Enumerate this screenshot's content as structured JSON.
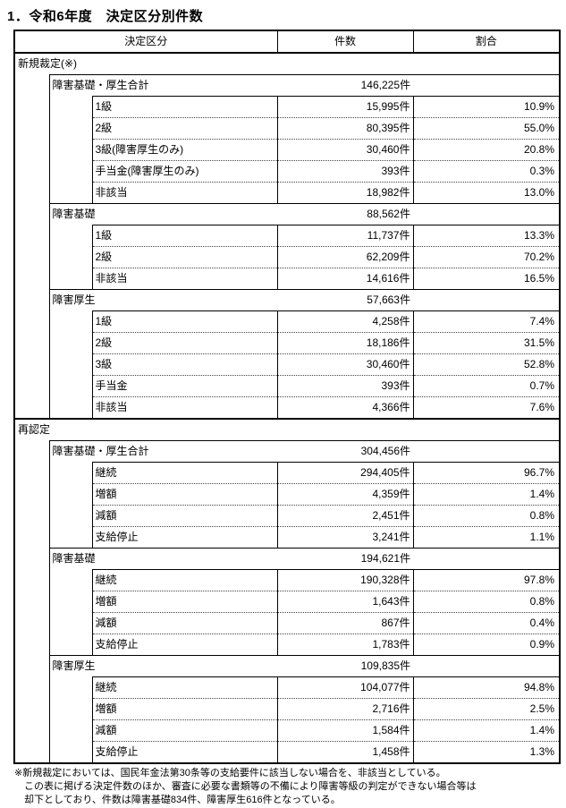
{
  "page": {
    "title": "1．令和6年度　決定区分別件数"
  },
  "table": {
    "headers": {
      "category": "決定区分",
      "count": "件数",
      "ratio": "割合"
    },
    "sections": [
      {
        "label": "新規裁定(※)",
        "groups": [
          {
            "label": "障害基礎・厚生合計",
            "count": "146,225件",
            "rows": [
              {
                "label": "1級",
                "count": "15,995件",
                "ratio": "10.9%"
              },
              {
                "label": "2級",
                "count": "80,395件",
                "ratio": "55.0%"
              },
              {
                "label": "3級(障害厚生のみ)",
                "count": "30,460件",
                "ratio": "20.8%"
              },
              {
                "label": "手当金(障害厚生のみ)",
                "count": "393件",
                "ratio": "0.3%"
              },
              {
                "label": "非該当",
                "count": "18,982件",
                "ratio": "13.0%"
              }
            ]
          },
          {
            "label": "障害基礎",
            "count": "88,562件",
            "rows": [
              {
                "label": "1級",
                "count": "11,737件",
                "ratio": "13.3%"
              },
              {
                "label": "2級",
                "count": "62,209件",
                "ratio": "70.2%"
              },
              {
                "label": "非該当",
                "count": "14,616件",
                "ratio": "16.5%"
              }
            ]
          },
          {
            "label": "障害厚生",
            "count": "57,663件",
            "rows": [
              {
                "label": "1級",
                "count": "4,258件",
                "ratio": "7.4%"
              },
              {
                "label": "2級",
                "count": "18,186件",
                "ratio": "31.5%"
              },
              {
                "label": "3級",
                "count": "30,460件",
                "ratio": "52.8%"
              },
              {
                "label": "手当金",
                "count": "393件",
                "ratio": "0.7%"
              },
              {
                "label": "非該当",
                "count": "4,366件",
                "ratio": "7.6%"
              }
            ]
          }
        ]
      },
      {
        "label": "再認定",
        "groups": [
          {
            "label": "障害基礎・厚生合計",
            "count": "304,456件",
            "rows": [
              {
                "label": "継続",
                "count": "294,405件",
                "ratio": "96.7%"
              },
              {
                "label": "増額",
                "count": "4,359件",
                "ratio": "1.4%"
              },
              {
                "label": "減額",
                "count": "2,451件",
                "ratio": "0.8%"
              },
              {
                "label": "支給停止",
                "count": "3,241件",
                "ratio": "1.1%"
              }
            ]
          },
          {
            "label": "障害基礎",
            "count": "194,621件",
            "rows": [
              {
                "label": "継続",
                "count": "190,328件",
                "ratio": "97.8%"
              },
              {
                "label": "増額",
                "count": "1,643件",
                "ratio": "0.8%"
              },
              {
                "label": "減額",
                "count": "867件",
                "ratio": "0.4%"
              },
              {
                "label": "支給停止",
                "count": "1,783件",
                "ratio": "0.9%"
              }
            ]
          },
          {
            "label": "障害厚生",
            "count": "109,835件",
            "rows": [
              {
                "label": "継続",
                "count": "104,077件",
                "ratio": "94.8%"
              },
              {
                "label": "増額",
                "count": "2,716件",
                "ratio": "2.5%"
              },
              {
                "label": "減額",
                "count": "1,584件",
                "ratio": "1.4%"
              },
              {
                "label": "支給停止",
                "count": "1,458件",
                "ratio": "1.3%"
              }
            ]
          }
        ]
      }
    ]
  },
  "footnote": {
    "lines": [
      "※新規裁定においては、国民年金法第30条等の支給要件に該当しない場合を、非該当としている。",
      "この表に掲げる決定件数のほか、審査に必要な書類等の不備により障害等級の判定ができない場合等は",
      "却下としており、件数は障害基礎834件、障害厚生616件となっている。"
    ]
  }
}
